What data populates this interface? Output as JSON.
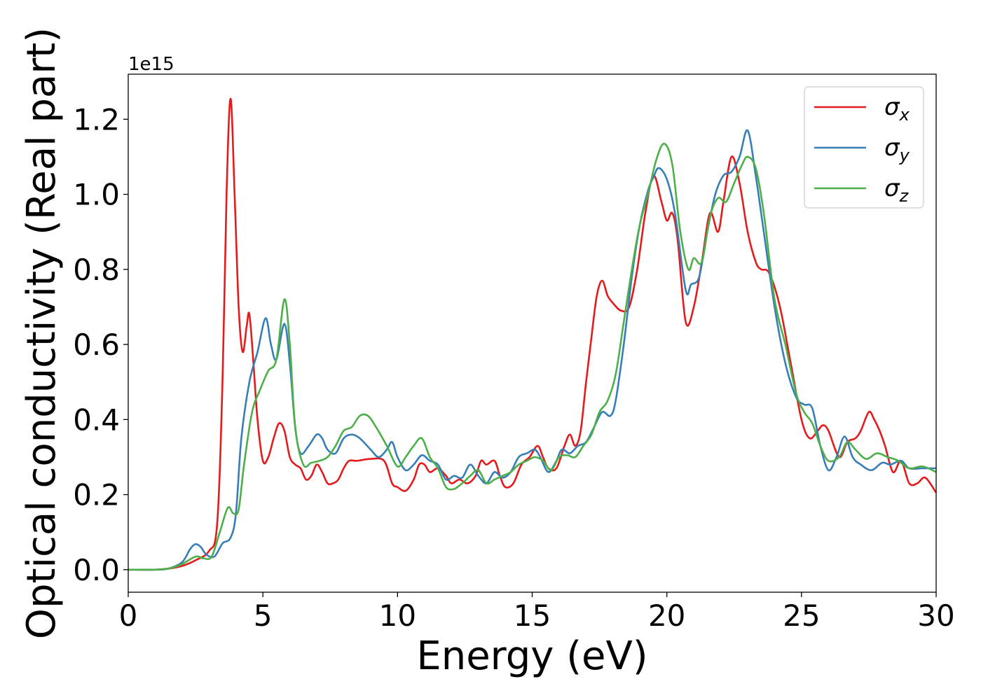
{
  "chart_data": {
    "type": "line",
    "xlabel": "Energy (eV)",
    "ylabel": "Optical conductivity (Real part)",
    "y_offset_label": "1e15",
    "y_scale": 1000000000000000.0,
    "xlim": [
      0,
      30
    ],
    "ylim": [
      -0.06,
      1.32
    ],
    "x_ticks": [
      0,
      5,
      10,
      15,
      20,
      25,
      30
    ],
    "x_tick_labels": [
      "0",
      "5",
      "10",
      "15",
      "20",
      "25",
      "30"
    ],
    "y_ticks": [
      0.0,
      0.2,
      0.4,
      0.6,
      0.8,
      1.0,
      1.2
    ],
    "y_tick_labels": [
      "0.0",
      "0.2",
      "0.4",
      "0.6",
      "0.8",
      "1.0",
      "1.2"
    ],
    "grid": false,
    "legend_position": "top-right",
    "series": [
      {
        "name": "σx",
        "symbol": "σ",
        "subscript": "x",
        "color": "#e41a1c",
        "points": [
          [
            0,
            0
          ],
          [
            1,
            0
          ],
          [
            1.5,
            0.003
          ],
          [
            2,
            0.01
          ],
          [
            2.5,
            0.025
          ],
          [
            3,
            0.05
          ],
          [
            3.3,
            0.12
          ],
          [
            3.5,
            0.5
          ],
          [
            3.65,
            1.0
          ],
          [
            3.8,
            1.255
          ],
          [
            3.95,
            1.0
          ],
          [
            4.1,
            0.7
          ],
          [
            4.25,
            0.58
          ],
          [
            4.4,
            0.65
          ],
          [
            4.5,
            0.68
          ],
          [
            4.65,
            0.55
          ],
          [
            4.8,
            0.4
          ],
          [
            5,
            0.29
          ],
          [
            5.2,
            0.3
          ],
          [
            5.4,
            0.35
          ],
          [
            5.6,
            0.39
          ],
          [
            5.8,
            0.37
          ],
          [
            6.0,
            0.3
          ],
          [
            6.2,
            0.28
          ],
          [
            6.4,
            0.27
          ],
          [
            6.6,
            0.24
          ],
          [
            6.8,
            0.25
          ],
          [
            7.0,
            0.28
          ],
          [
            7.2,
            0.26
          ],
          [
            7.4,
            0.23
          ],
          [
            7.6,
            0.23
          ],
          [
            7.8,
            0.24
          ],
          [
            8.0,
            0.27
          ],
          [
            8.2,
            0.29
          ],
          [
            8.5,
            0.29
          ],
          [
            9.0,
            0.295
          ],
          [
            9.5,
            0.29
          ],
          [
            9.8,
            0.23
          ],
          [
            10.0,
            0.22
          ],
          [
            10.3,
            0.21
          ],
          [
            10.6,
            0.24
          ],
          [
            10.8,
            0.28
          ],
          [
            11.0,
            0.28
          ],
          [
            11.2,
            0.26
          ],
          [
            11.5,
            0.27
          ],
          [
            11.8,
            0.25
          ],
          [
            12.0,
            0.23
          ],
          [
            12.3,
            0.24
          ],
          [
            12.6,
            0.23
          ],
          [
            12.9,
            0.25
          ],
          [
            13.1,
            0.29
          ],
          [
            13.3,
            0.28
          ],
          [
            13.6,
            0.29
          ],
          [
            13.8,
            0.25
          ],
          [
            14.0,
            0.22
          ],
          [
            14.3,
            0.23
          ],
          [
            14.6,
            0.28
          ],
          [
            14.9,
            0.3
          ],
          [
            15.2,
            0.33
          ],
          [
            15.4,
            0.3
          ],
          [
            15.6,
            0.27
          ],
          [
            15.9,
            0.27
          ],
          [
            16.2,
            0.33
          ],
          [
            16.4,
            0.36
          ],
          [
            16.6,
            0.33
          ],
          [
            16.8,
            0.37
          ],
          [
            17.0,
            0.5
          ],
          [
            17.2,
            0.62
          ],
          [
            17.4,
            0.73
          ],
          [
            17.6,
            0.77
          ],
          [
            17.8,
            0.73
          ],
          [
            18.0,
            0.71
          ],
          [
            18.3,
            0.69
          ],
          [
            18.6,
            0.7
          ],
          [
            18.9,
            0.8
          ],
          [
            19.2,
            0.95
          ],
          [
            19.5,
            1.05
          ],
          [
            19.8,
            0.98
          ],
          [
            20.0,
            0.93
          ],
          [
            20.2,
            0.95
          ],
          [
            20.4,
            0.88
          ],
          [
            20.7,
            0.66
          ],
          [
            21.0,
            0.7
          ],
          [
            21.3,
            0.82
          ],
          [
            21.6,
            0.95
          ],
          [
            21.9,
            0.9
          ],
          [
            22.1,
            0.98
          ],
          [
            22.4,
            1.1
          ],
          [
            22.7,
            1.03
          ],
          [
            23.0,
            0.9
          ],
          [
            23.3,
            0.82
          ],
          [
            23.5,
            0.8
          ],
          [
            23.8,
            0.79
          ],
          [
            24.2,
            0.7
          ],
          [
            24.6,
            0.55
          ],
          [
            25.0,
            0.4
          ],
          [
            25.3,
            0.35
          ],
          [
            25.6,
            0.37
          ],
          [
            25.8,
            0.385
          ],
          [
            26.0,
            0.37
          ],
          [
            26.4,
            0.3
          ],
          [
            26.7,
            0.34
          ],
          [
            27.0,
            0.35
          ],
          [
            27.2,
            0.37
          ],
          [
            27.5,
            0.42
          ],
          [
            27.7,
            0.4
          ],
          [
            27.9,
            0.37
          ],
          [
            28.1,
            0.33
          ],
          [
            28.4,
            0.26
          ],
          [
            28.7,
            0.29
          ],
          [
            29.0,
            0.23
          ],
          [
            29.3,
            0.23
          ],
          [
            29.6,
            0.245
          ],
          [
            30,
            0.205
          ]
        ]
      },
      {
        "name": "σy",
        "symbol": "σ",
        "subscript": "y",
        "color": "#377eb8",
        "points": [
          [
            0,
            0
          ],
          [
            1,
            0
          ],
          [
            1.5,
            0.003
          ],
          [
            2,
            0.02
          ],
          [
            2.3,
            0.055
          ],
          [
            2.5,
            0.068
          ],
          [
            2.7,
            0.06
          ],
          [
            2.9,
            0.04
          ],
          [
            3.2,
            0.035
          ],
          [
            3.5,
            0.07
          ],
          [
            3.8,
            0.085
          ],
          [
            4.0,
            0.15
          ],
          [
            4.2,
            0.35
          ],
          [
            4.5,
            0.5
          ],
          [
            4.8,
            0.58
          ],
          [
            5.1,
            0.67
          ],
          [
            5.3,
            0.6
          ],
          [
            5.5,
            0.56
          ],
          [
            5.8,
            0.655
          ],
          [
            6.0,
            0.55
          ],
          [
            6.2,
            0.38
          ],
          [
            6.4,
            0.31
          ],
          [
            6.7,
            0.33
          ],
          [
            7.0,
            0.36
          ],
          [
            7.2,
            0.35
          ],
          [
            7.4,
            0.32
          ],
          [
            7.7,
            0.31
          ],
          [
            8.0,
            0.35
          ],
          [
            8.3,
            0.36
          ],
          [
            8.6,
            0.35
          ],
          [
            9.0,
            0.32
          ],
          [
            9.3,
            0.3
          ],
          [
            9.6,
            0.32
          ],
          [
            9.8,
            0.34
          ],
          [
            10.0,
            0.3
          ],
          [
            10.3,
            0.265
          ],
          [
            10.6,
            0.28
          ],
          [
            10.9,
            0.305
          ],
          [
            11.2,
            0.29
          ],
          [
            11.5,
            0.28
          ],
          [
            11.8,
            0.24
          ],
          [
            12.1,
            0.25
          ],
          [
            12.4,
            0.245
          ],
          [
            12.7,
            0.28
          ],
          [
            13.0,
            0.25
          ],
          [
            13.3,
            0.23
          ],
          [
            13.6,
            0.26
          ],
          [
            13.9,
            0.245
          ],
          [
            14.2,
            0.26
          ],
          [
            14.5,
            0.3
          ],
          [
            14.8,
            0.31
          ],
          [
            15.1,
            0.32
          ],
          [
            15.3,
            0.3
          ],
          [
            15.6,
            0.26
          ],
          [
            15.9,
            0.29
          ],
          [
            16.1,
            0.32
          ],
          [
            16.4,
            0.31
          ],
          [
            16.7,
            0.33
          ],
          [
            17.0,
            0.34
          ],
          [
            17.3,
            0.38
          ],
          [
            17.6,
            0.42
          ],
          [
            17.9,
            0.41
          ],
          [
            18.1,
            0.45
          ],
          [
            18.4,
            0.6
          ],
          [
            18.7,
            0.78
          ],
          [
            19.0,
            0.92
          ],
          [
            19.3,
            1.01
          ],
          [
            19.5,
            1.045
          ],
          [
            19.7,
            1.07
          ],
          [
            20.0,
            1.04
          ],
          [
            20.3,
            0.95
          ],
          [
            20.7,
            0.745
          ],
          [
            20.9,
            0.76
          ],
          [
            21.2,
            0.78
          ],
          [
            21.5,
            0.9
          ],
          [
            21.8,
            1.0
          ],
          [
            22.1,
            1.05
          ],
          [
            22.4,
            1.06
          ],
          [
            22.7,
            1.1
          ],
          [
            23.0,
            1.17
          ],
          [
            23.3,
            1.05
          ],
          [
            23.6,
            0.9
          ],
          [
            24.0,
            0.7
          ],
          [
            24.4,
            0.55
          ],
          [
            24.8,
            0.46
          ],
          [
            25.1,
            0.44
          ],
          [
            25.4,
            0.43
          ],
          [
            25.7,
            0.33
          ],
          [
            26.0,
            0.265
          ],
          [
            26.3,
            0.3
          ],
          [
            26.6,
            0.355
          ],
          [
            26.9,
            0.3
          ],
          [
            27.2,
            0.28
          ],
          [
            27.6,
            0.265
          ],
          [
            28.0,
            0.285
          ],
          [
            28.3,
            0.28
          ],
          [
            28.7,
            0.29
          ],
          [
            29.0,
            0.27
          ],
          [
            29.5,
            0.27
          ],
          [
            30,
            0.27
          ]
        ]
      },
      {
        "name": "σz",
        "symbol": "σ",
        "subscript": "z",
        "color": "#4daf4a",
        "points": [
          [
            0,
            0
          ],
          [
            1,
            0
          ],
          [
            1.5,
            0.003
          ],
          [
            2,
            0.015
          ],
          [
            2.5,
            0.035
          ],
          [
            2.8,
            0.03
          ],
          [
            3.1,
            0.035
          ],
          [
            3.4,
            0.1
          ],
          [
            3.7,
            0.165
          ],
          [
            3.9,
            0.15
          ],
          [
            4.1,
            0.16
          ],
          [
            4.3,
            0.28
          ],
          [
            4.6,
            0.42
          ],
          [
            4.9,
            0.48
          ],
          [
            5.2,
            0.53
          ],
          [
            5.5,
            0.56
          ],
          [
            5.8,
            0.72
          ],
          [
            6.0,
            0.6
          ],
          [
            6.2,
            0.38
          ],
          [
            6.5,
            0.28
          ],
          [
            6.8,
            0.285
          ],
          [
            7.1,
            0.29
          ],
          [
            7.4,
            0.3
          ],
          [
            7.7,
            0.33
          ],
          [
            8.0,
            0.37
          ],
          [
            8.3,
            0.38
          ],
          [
            8.6,
            0.41
          ],
          [
            8.9,
            0.41
          ],
          [
            9.2,
            0.38
          ],
          [
            9.6,
            0.33
          ],
          [
            10.0,
            0.275
          ],
          [
            10.3,
            0.3
          ],
          [
            10.6,
            0.33
          ],
          [
            10.9,
            0.35
          ],
          [
            11.2,
            0.3
          ],
          [
            11.5,
            0.27
          ],
          [
            11.8,
            0.22
          ],
          [
            12.1,
            0.215
          ],
          [
            12.4,
            0.23
          ],
          [
            12.7,
            0.25
          ],
          [
            13.0,
            0.265
          ],
          [
            13.3,
            0.23
          ],
          [
            13.6,
            0.24
          ],
          [
            13.9,
            0.25
          ],
          [
            14.2,
            0.26
          ],
          [
            14.5,
            0.28
          ],
          [
            14.8,
            0.29
          ],
          [
            15.1,
            0.3
          ],
          [
            15.4,
            0.29
          ],
          [
            15.7,
            0.265
          ],
          [
            16.0,
            0.3
          ],
          [
            16.3,
            0.305
          ],
          [
            16.6,
            0.3
          ],
          [
            16.9,
            0.33
          ],
          [
            17.2,
            0.36
          ],
          [
            17.5,
            0.42
          ],
          [
            17.8,
            0.45
          ],
          [
            18.1,
            0.52
          ],
          [
            18.4,
            0.66
          ],
          [
            18.7,
            0.8
          ],
          [
            19.0,
            0.92
          ],
          [
            19.3,
            1.0
          ],
          [
            19.6,
            1.09
          ],
          [
            19.9,
            1.135
          ],
          [
            20.2,
            1.08
          ],
          [
            20.5,
            0.9
          ],
          [
            20.8,
            0.8
          ],
          [
            21.0,
            0.83
          ],
          [
            21.3,
            0.82
          ],
          [
            21.6,
            0.94
          ],
          [
            21.9,
            0.99
          ],
          [
            22.2,
            0.98
          ],
          [
            22.5,
            1.03
          ],
          [
            22.8,
            1.08
          ],
          [
            23.0,
            1.1
          ],
          [
            23.3,
            1.07
          ],
          [
            23.6,
            0.95
          ],
          [
            24.0,
            0.72
          ],
          [
            24.4,
            0.6
          ],
          [
            24.8,
            0.47
          ],
          [
            25.1,
            0.42
          ],
          [
            25.4,
            0.39
          ],
          [
            25.7,
            0.33
          ],
          [
            26.0,
            0.29
          ],
          [
            26.4,
            0.3
          ],
          [
            26.7,
            0.34
          ],
          [
            27.0,
            0.32
          ],
          [
            27.4,
            0.295
          ],
          [
            27.8,
            0.31
          ],
          [
            28.2,
            0.3
          ],
          [
            28.6,
            0.29
          ],
          [
            29.0,
            0.27
          ],
          [
            29.5,
            0.275
          ],
          [
            30,
            0.26
          ]
        ]
      }
    ]
  }
}
